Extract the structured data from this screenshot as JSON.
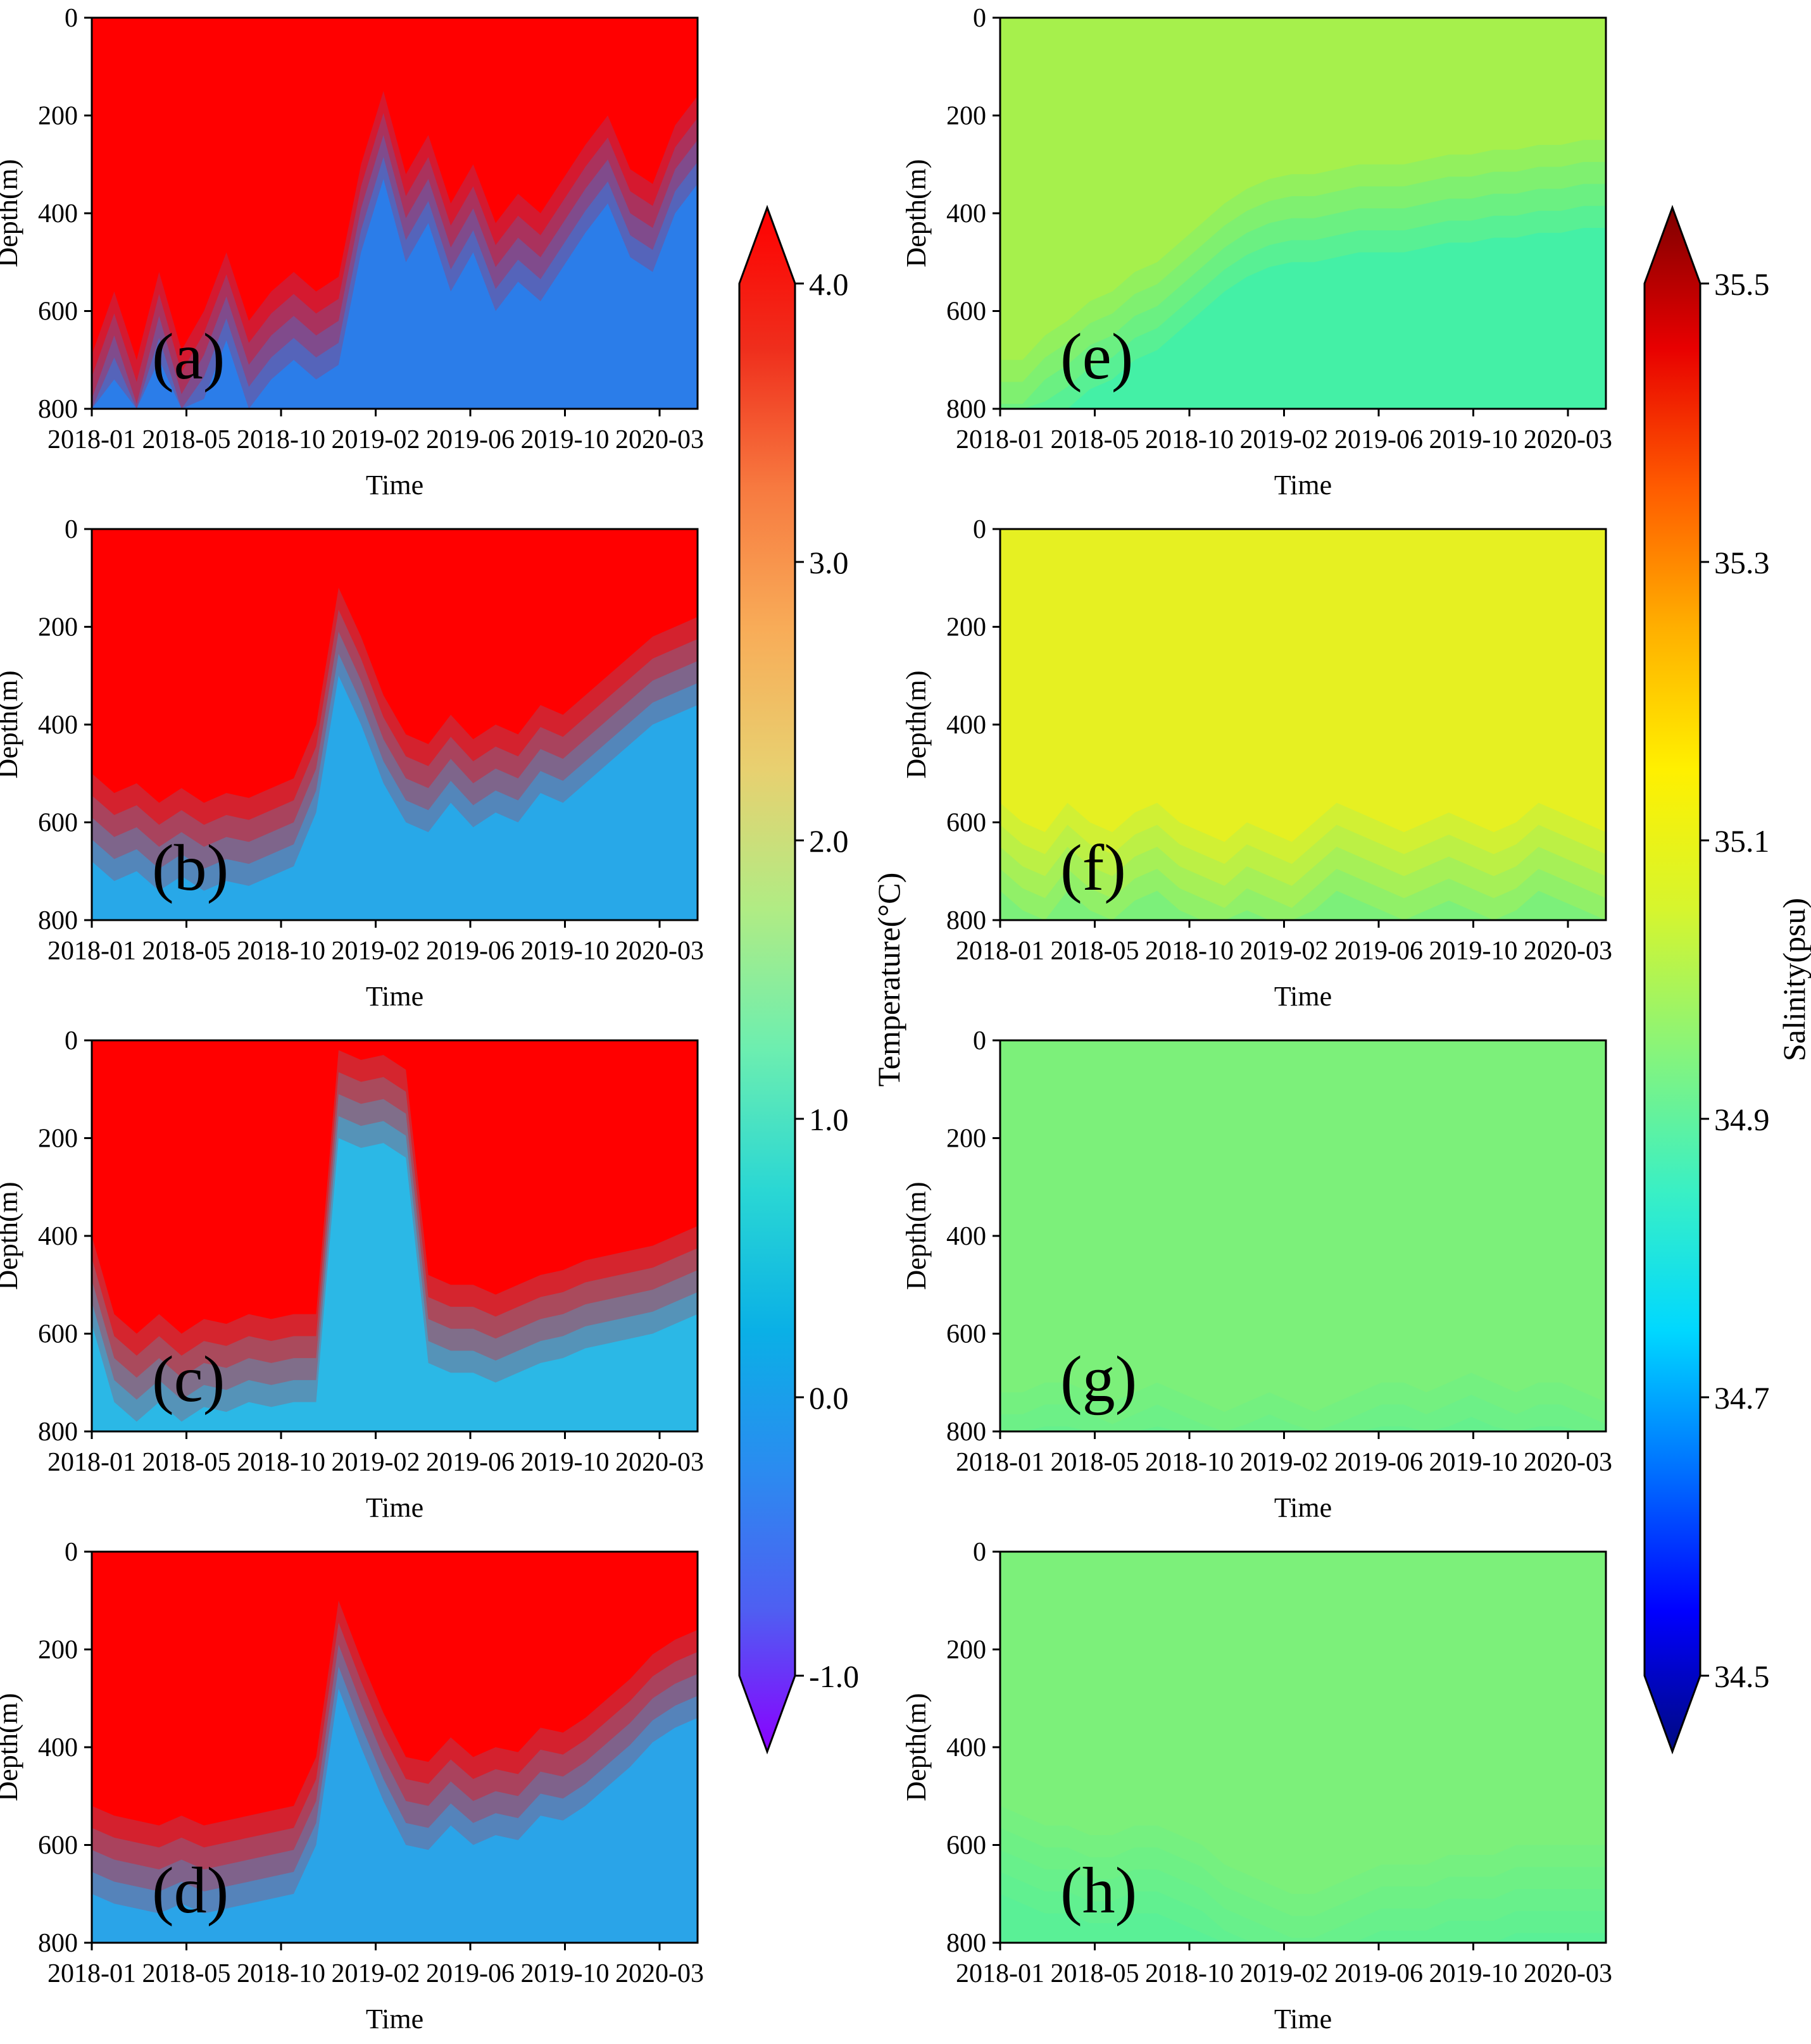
{
  "chart_data": {
    "type": "heatmap",
    "x_ticks": [
      "2018-01",
      "2018-05",
      "2018-10",
      "2019-02",
      "2019-06",
      "2019-10",
      "2020-03"
    ],
    "y_ticks": [
      "0",
      "200",
      "400",
      "600",
      "800"
    ],
    "x_title": "Time",
    "y_title": "Depth(m)",
    "xlim": [
      "2018-01",
      "2020-05"
    ],
    "ylim": [
      0,
      800
    ],
    "columns": [
      {
        "variable": "temperature",
        "colorbar": {
          "title": "Temperature(°C)",
          "ticks": [
            "4.0",
            "3.0",
            "2.0",
            "1.0",
            "0.0",
            "-1.0"
          ],
          "range": [
            -1.0,
            4.0
          ],
          "colors": [
            "#8a00ff",
            "#4f5ef2",
            "#2b8bf0",
            "#0ab0e6",
            "#2ad7d4",
            "#6ceeb0",
            "#b0ec84",
            "#e8d070",
            "#f8ac58",
            "#f77a40",
            "#ef2e1c",
            "#ff0000"
          ]
        },
        "panels": [
          {
            "label": "(a)",
            "base": "#ff0000",
            "deep": "#2b7de9",
            "front_depths": [
              690,
              560,
              700,
              520,
              680,
              600,
              480,
              620,
              560,
              520,
              560,
              530,
              300,
              150,
              320,
              240,
              380,
              300,
              420,
              360,
              400,
              330,
              260,
              200,
              310,
              340,
              220,
              160
            ]
          },
          {
            "label": "(b)",
            "base": "#ff0000",
            "deep": "#28a8e8",
            "front_depths": [
              500,
              540,
              520,
              560,
              530,
              560,
              540,
              550,
              530,
              510,
              400,
              120,
              220,
              340,
              420,
              440,
              380,
              430,
              400,
              420,
              360,
              380,
              340,
              300,
              260,
              220,
              200,
              180
            ]
          },
          {
            "label": "(c)",
            "base": "#ff0000",
            "deep": "#2bb8e6",
            "front_depths": [
              400,
              560,
              600,
              560,
              600,
              570,
              580,
              560,
              570,
              560,
              560,
              20,
              40,
              30,
              60,
              480,
              500,
              500,
              520,
              500,
              480,
              470,
              450,
              440,
              430,
              420,
              400,
              380
            ]
          },
          {
            "label": "(d)",
            "base": "#ff0000",
            "deep": "#2aa4e8",
            "front_depths": [
              520,
              540,
              550,
              560,
              540,
              560,
              550,
              540,
              530,
              520,
              420,
              100,
              220,
              330,
              420,
              430,
              380,
              420,
              400,
              410,
              360,
              370,
              340,
              300,
              260,
              210,
              180,
              160
            ]
          }
        ]
      },
      {
        "variable": "salinity",
        "colorbar": {
          "title": "Salinity(psu)",
          "ticks": [
            "35.5",
            "35.3",
            "35.1",
            "34.9",
            "34.7",
            "34.5"
          ],
          "range": [
            34.5,
            35.5
          ],
          "colors": [
            "#000a80",
            "#0000ff",
            "#0070ff",
            "#00d8ff",
            "#3af0c4",
            "#88f47a",
            "#d6f52e",
            "#fff000",
            "#ffb000",
            "#ff5c00",
            "#e80000",
            "#7e0000"
          ]
        },
        "panels": [
          {
            "label": "(e)",
            "base": "#a6f04c",
            "deep": "#44f0a6",
            "front_depths": [
              700,
              700,
              650,
              620,
              580,
              560,
              520,
              500,
              460,
              420,
              380,
              350,
              330,
              320,
              320,
              310,
              300,
              300,
              300,
              290,
              280,
              280,
              270,
              270,
              260,
              260,
              250,
              250
            ]
          },
          {
            "label": "(f)",
            "base": "#e6f022",
            "deep": "#7cf07a",
            "front_depths": [
              560,
              600,
              620,
              560,
              600,
              620,
              580,
              560,
              600,
              620,
              640,
              600,
              620,
              640,
              600,
              560,
              580,
              600,
              620,
              600,
              580,
              600,
              620,
              600,
              560,
              580,
              600,
              620
            ]
          },
          {
            "label": "(g)",
            "base": "#7cf07a",
            "deep": "#56f09a",
            "front_depths": [
              720,
              720,
              700,
              700,
              720,
              740,
              720,
              700,
              720,
              740,
              760,
              740,
              720,
              740,
              760,
              740,
              720,
              700,
              700,
              720,
              700,
              680,
              700,
              720,
              700,
              700,
              720,
              740
            ]
          },
          {
            "label": "(h)",
            "base": "#7cf07a",
            "deep": "#5af096",
            "front_depths": [
              520,
              540,
              560,
              560,
              580,
              580,
              560,
              560,
              580,
              600,
              640,
              660,
              680,
              700,
              700,
              680,
              660,
              640,
              640,
              640,
              620,
              620,
              620,
              600,
              600,
              600,
              600,
              600
            ]
          }
        ]
      }
    ]
  }
}
